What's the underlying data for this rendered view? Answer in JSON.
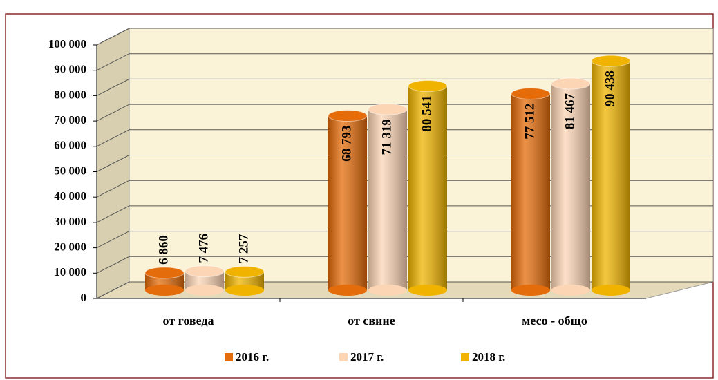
{
  "chart_data": {
    "type": "bar3d",
    "categories": [
      "от говеда",
      "от свине",
      "месо - общо"
    ],
    "series": [
      {
        "name": "2016 г.",
        "color": "#e46c0a",
        "values": [
          6860,
          68793,
          77512
        ],
        "value_labels": [
          "6 860",
          "68 793",
          "77 512"
        ]
      },
      {
        "name": "2017 г.",
        "color": "#fcd5b5",
        "values": [
          7476,
          71319,
          81467
        ],
        "value_labels": [
          "7 476",
          "71 319",
          "81 467"
        ]
      },
      {
        "name": "2018 г.",
        "color": "#f0b400",
        "values": [
          7257,
          80541,
          90438
        ],
        "value_labels": [
          "7 257",
          "80 541",
          "90 438"
        ]
      }
    ],
    "ylim": [
      0,
      100000
    ],
    "yticks": [
      0,
      {
        "value": 10000,
        "label": "10 000"
      },
      {
        "value": 20000,
        "label": "20 000"
      },
      {
        "value": 30000,
        "label": "30 000"
      },
      {
        "value": 40000,
        "label": "40 000"
      },
      {
        "value": 50000,
        "label": "50 000"
      },
      {
        "value": 60000,
        "label": "60 000"
      },
      {
        "value": 70000,
        "label": "70 000"
      },
      {
        "value": 80000,
        "label": "80 000"
      },
      {
        "value": 90000,
        "label": "90 000"
      },
      {
        "value": 100000,
        "label": "100 000"
      }
    ],
    "grid": true,
    "legend": "bottom"
  }
}
